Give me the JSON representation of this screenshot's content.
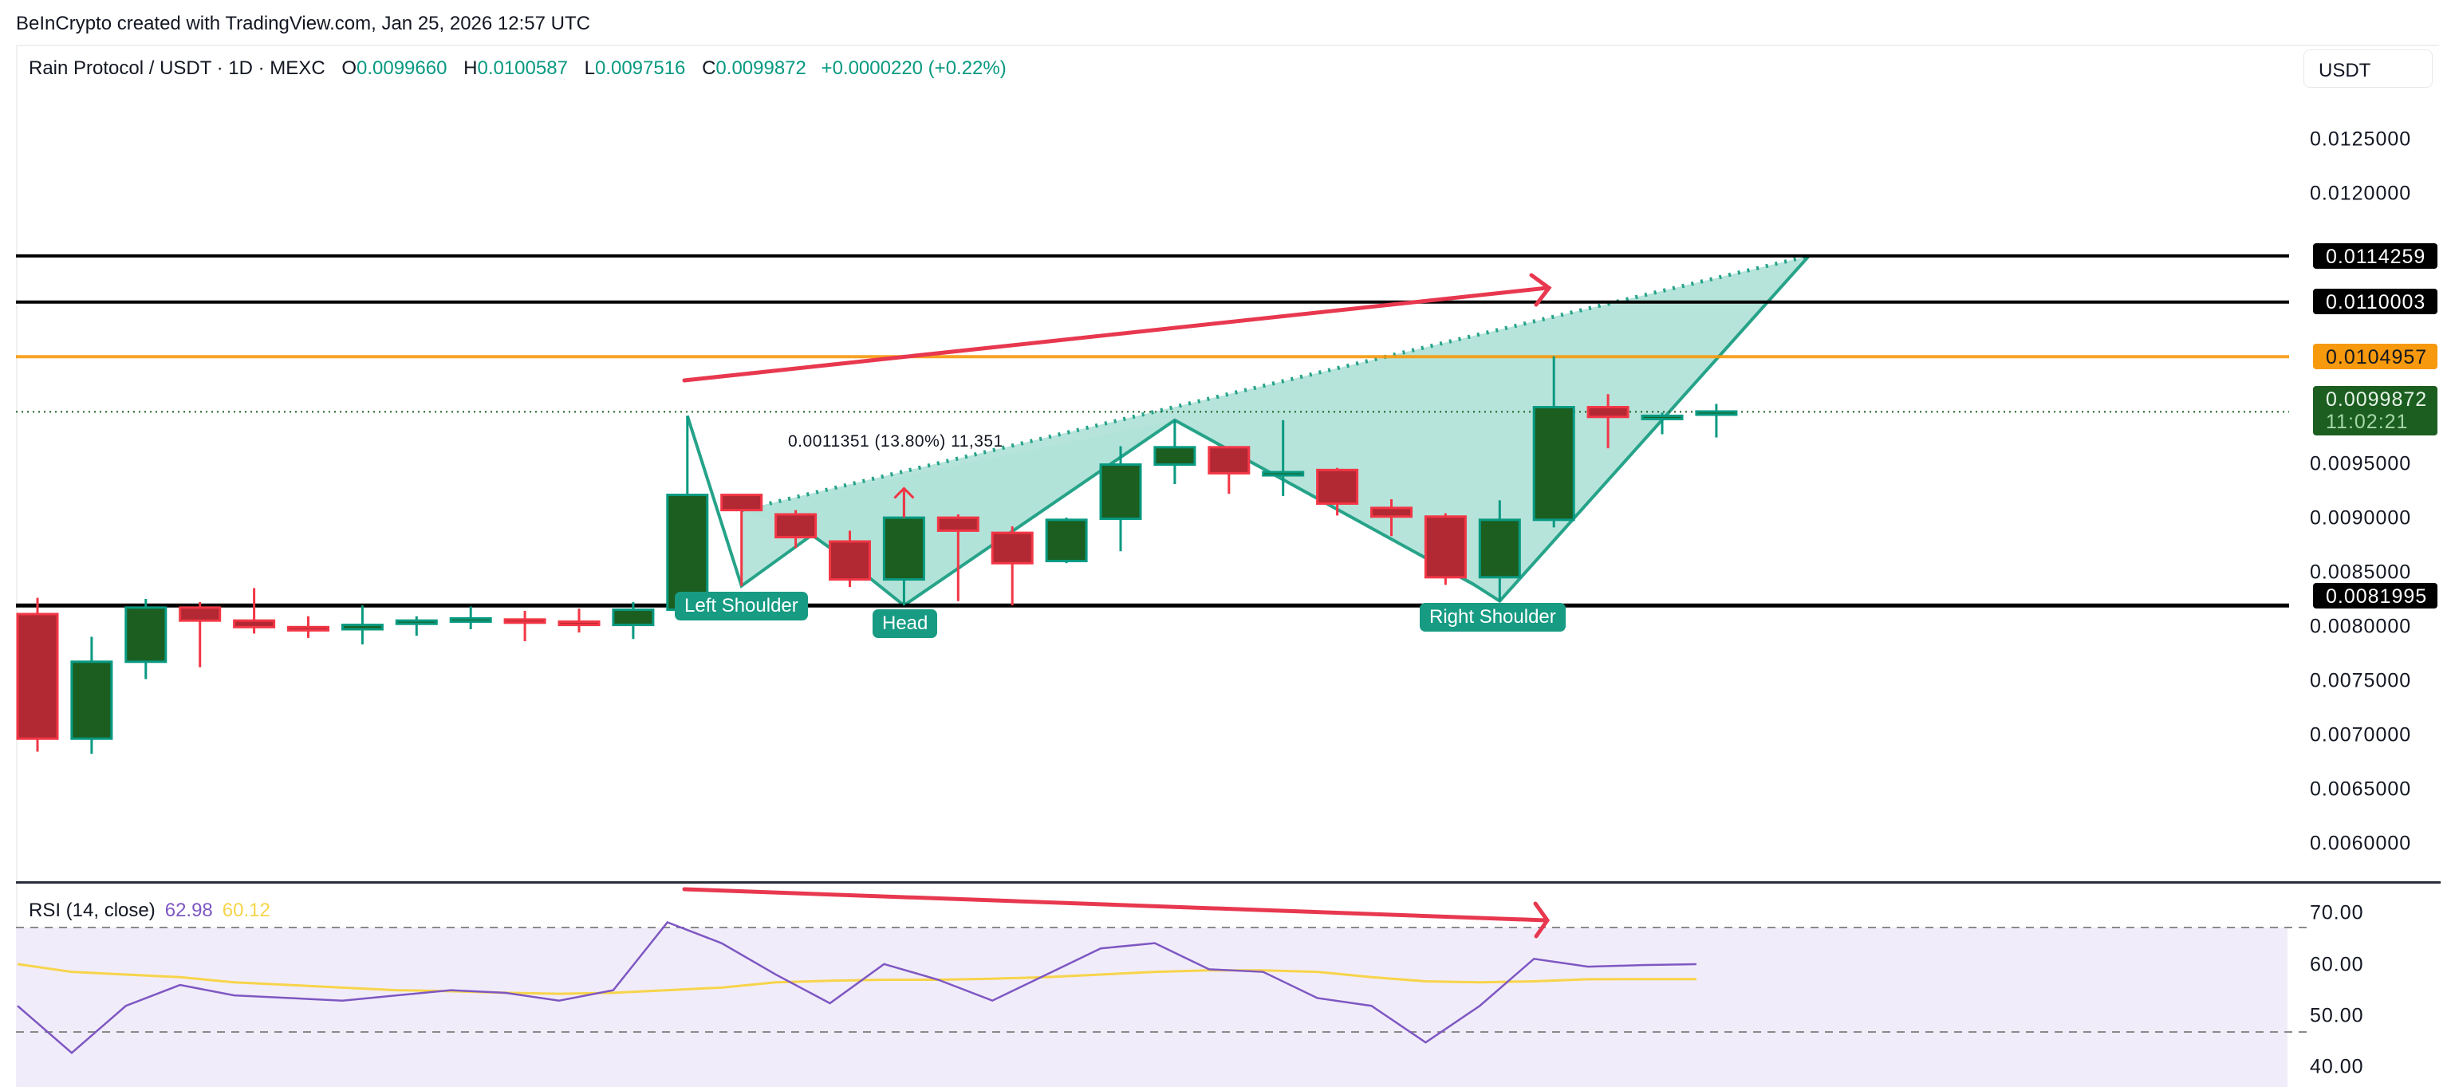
{
  "attribution": "BeInCrypto created with TradingView.com, Jan 25, 2026 12:57 UTC",
  "header": {
    "symbol": "Rain Protocol / USDT · 1D · MEXC",
    "open_label": "O",
    "open": "0.0099660",
    "high_label": "H",
    "high": "0.0100587",
    "low_label": "L",
    "low": "0.0097516",
    "close_label": "C",
    "close": "0.0099872",
    "change": "+0.0000220 (+0.22%)",
    "currency_button": "USDT"
  },
  "price_axis": {
    "ticks": [
      "0.0125000",
      "0.0120000",
      "0.0095000",
      "0.0090000",
      "0.0085000",
      "0.0080000",
      "0.0075000",
      "0.0070000",
      "0.0065000",
      "0.0060000"
    ],
    "labels": {
      "resistance_2": "0.0114259",
      "resistance_1": "0.0110003",
      "resistance_orange": "0.0104957",
      "current_price": "0.0099872",
      "countdown": "11:02:21",
      "neckline": "0.0081995"
    }
  },
  "annotations": {
    "left_shoulder": "Left Shoulder",
    "head": "Head",
    "right_shoulder": "Right Shoulder",
    "measure": "0.0011351 (13.80%) 11,351"
  },
  "rsi": {
    "title": "RSI (14, close)",
    "value": "62.98",
    "ma_value": "60.12",
    "ticks": [
      "70.00",
      "60.00",
      "50.00",
      "40.00"
    ]
  },
  "colors": {
    "up": "#1b5e20",
    "up_border": "#089981",
    "down": "#b22833",
    "down_border": "#f23645",
    "pattern_fill": "#b2e3d9",
    "pattern_line": "#26a389",
    "divergence": "#e8384f",
    "orange_level": "#f7990c",
    "rsi_line": "#7e57c2",
    "rsi_ma": "#f7d44a",
    "rsi_band": "#f1ecfa"
  },
  "chart_data": {
    "type": "candlestick",
    "title": "Rain Protocol / USDT · 1D · MEXC",
    "ylabel": "USDT",
    "ylim": [
      0.0056,
      0.0129
    ],
    "candles": [
      {
        "o": 0.00812,
        "h": 0.00827,
        "l": 0.00685,
        "c": 0.00697
      },
      {
        "o": 0.00697,
        "h": 0.00791,
        "l": 0.00683,
        "c": 0.00768
      },
      {
        "o": 0.00768,
        "h": 0.00826,
        "l": 0.00752,
        "c": 0.00818
      },
      {
        "o": 0.00818,
        "h": 0.00823,
        "l": 0.00763,
        "c": 0.00806
      },
      {
        "o": 0.00806,
        "h": 0.00836,
        "l": 0.00794,
        "c": 0.008
      },
      {
        "o": 0.008,
        "h": 0.0081,
        "l": 0.0079,
        "c": 0.00797
      },
      {
        "o": 0.00798,
        "h": 0.0082,
        "l": 0.00784,
        "c": 0.00802
      },
      {
        "o": 0.00803,
        "h": 0.0081,
        "l": 0.00792,
        "c": 0.00806
      },
      {
        "o": 0.00806,
        "h": 0.00819,
        "l": 0.00798,
        "c": 0.00808
      },
      {
        "o": 0.00807,
        "h": 0.00815,
        "l": 0.00787,
        "c": 0.00805
      },
      {
        "o": 0.00805,
        "h": 0.00817,
        "l": 0.00795,
        "c": 0.00802
      },
      {
        "o": 0.00802,
        "h": 0.00823,
        "l": 0.00789,
        "c": 0.00816
      },
      {
        "o": 0.00816,
        "h": 0.00995,
        "l": 0.00816,
        "c": 0.00922
      },
      {
        "o": 0.00922,
        "h": 0.00922,
        "l": 0.00838,
        "c": 0.00908
      },
      {
        "o": 0.00904,
        "h": 0.00908,
        "l": 0.00873,
        "c": 0.00883
      },
      {
        "o": 0.00879,
        "h": 0.00889,
        "l": 0.00837,
        "c": 0.00844
      },
      {
        "o": 0.00844,
        "h": 0.00928,
        "l": 0.0082,
        "c": 0.00901
      },
      {
        "o": 0.00901,
        "h": 0.00904,
        "l": 0.00824,
        "c": 0.00889
      },
      {
        "o": 0.00887,
        "h": 0.00893,
        "l": 0.0082,
        "c": 0.00859
      },
      {
        "o": 0.00861,
        "h": 0.00901,
        "l": 0.00859,
        "c": 0.00899
      },
      {
        "o": 0.009,
        "h": 0.00967,
        "l": 0.0087,
        "c": 0.0095
      },
      {
        "o": 0.0095,
        "h": 0.00991,
        "l": 0.00932,
        "c": 0.00966
      },
      {
        "o": 0.00966,
        "h": 0.00966,
        "l": 0.00923,
        "c": 0.00942
      },
      {
        "o": 0.00942,
        "h": 0.00991,
        "l": 0.00921,
        "c": 0.00943
      },
      {
        "o": 0.00945,
        "h": 0.00947,
        "l": 0.00903,
        "c": 0.00914
      },
      {
        "o": 0.0091,
        "h": 0.00918,
        "l": 0.00884,
        "c": 0.00902
      },
      {
        "o": 0.00902,
        "h": 0.00905,
        "l": 0.00839,
        "c": 0.00846
      },
      {
        "o": 0.00846,
        "h": 0.00917,
        "l": 0.00824,
        "c": 0.00899
      },
      {
        "o": 0.00899,
        "h": 0.0105,
        "l": 0.00892,
        "c": 0.01003
      },
      {
        "o": 0.01003,
        "h": 0.01015,
        "l": 0.00965,
        "c": 0.00994
      },
      {
        "o": 0.00993,
        "h": 0.00998,
        "l": 0.00978,
        "c": 0.00995
      },
      {
        "o": 0.00997,
        "h": 0.01006,
        "l": 0.00975,
        "c": 0.00999
      }
    ],
    "horizontal_levels": [
      0.0114259,
      0.0110003,
      0.0104957,
      0.0099872,
      0.0081995
    ],
    "pattern": "Inverse head and shoulders: Left Shoulder, Head, Right Shoulder",
    "rsi": {
      "ylim": [
        36,
        76
      ],
      "bands": [
        70,
        50
      ],
      "values": [
        55,
        46,
        55,
        59,
        57,
        56.5,
        56,
        57,
        58,
        57.5,
        56,
        58,
        71,
        67,
        61,
        55.5,
        63,
        60,
        56,
        61,
        66,
        67,
        62,
        61.5,
        56.5,
        55,
        48,
        55,
        64,
        62.5,
        62.8,
        62.98
      ],
      "ma_values": [
        63,
        61.5,
        61,
        60.5,
        59.5,
        59,
        58.5,
        58,
        57.8,
        57.5,
        57.3,
        57.5,
        58,
        58.5,
        59.5,
        59.8,
        60,
        60,
        60.2,
        60.5,
        61,
        61.5,
        61.8,
        61.8,
        61.5,
        60.5,
        59.7,
        59.5,
        59.7,
        60.1,
        60.12,
        60.12
      ]
    }
  }
}
